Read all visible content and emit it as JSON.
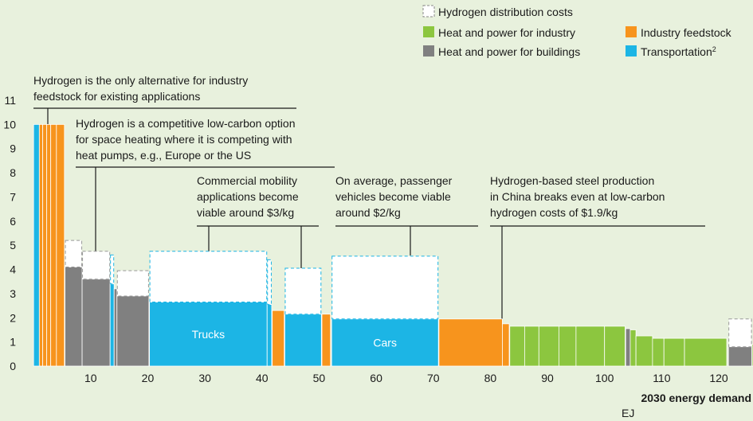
{
  "chart_data": {
    "type": "cost_curve",
    "xlim": [
      -1,
      126
    ],
    "ylim": [
      0,
      11
    ],
    "xticks": [
      10,
      20,
      30,
      40,
      50,
      60,
      70,
      80,
      90,
      100,
      110,
      120
    ],
    "yticks": [
      0,
      1,
      2,
      3,
      4,
      5,
      6,
      7,
      8,
      9,
      10,
      11
    ],
    "x_label": [
      "2030 energy demand",
      "EJ"
    ],
    "distribution_label": "Hydrogen distribution costs",
    "series": [
      {
        "name": "Heat and power for industry",
        "color": "#8cc63f"
      },
      {
        "name": "Industry feedstock",
        "color": "#f7941d"
      },
      {
        "name": "Heat and power for buildings",
        "color": "#808080"
      },
      {
        "name": "Transportation",
        "sup": "2",
        "color": "#1cb5e5"
      }
    ],
    "bars": [
      {
        "series": 3,
        "x": [
          0,
          1
        ],
        "value": 10
      },
      {
        "series": 1,
        "x": [
          1,
          1.6
        ],
        "value": 10
      },
      {
        "series": 1,
        "x": [
          1.6,
          2.3
        ],
        "value": 10
      },
      {
        "series": 1,
        "x": [
          2.3,
          3
        ],
        "value": 10
      },
      {
        "series": 1,
        "x": [
          3,
          4
        ],
        "value": 10
      },
      {
        "series": 1,
        "x": [
          4,
          5.4
        ],
        "value": 10
      },
      {
        "series": 2,
        "x": [
          5.5,
          8.5
        ],
        "value": 4.1,
        "dist": 1.1
      },
      {
        "series": 2,
        "x": [
          8.5,
          13.4
        ],
        "value": 3.6,
        "dist": 1.15
      },
      {
        "series": 3,
        "x": [
          13.4,
          14.1
        ],
        "value": 3.4,
        "dist": 1.2
      },
      {
        "series": 2,
        "x": [
          14.1,
          14.6
        ],
        "value": 3.2
      },
      {
        "series": 2,
        "x": [
          14.6,
          20.2
        ],
        "value": 2.9,
        "dist": 1.05
      },
      {
        "series": 3,
        "x": [
          20.3,
          40.9
        ],
        "value": 2.65,
        "dist": 2.1,
        "label": "Trucks"
      },
      {
        "series": 3,
        "x": [
          40.9,
          41.7
        ],
        "value": 2.55,
        "dist": 1.85
      },
      {
        "series": 1,
        "x": [
          41.8,
          43.9
        ],
        "value": 2.3
      },
      {
        "series": 3,
        "x": [
          44,
          50.4
        ],
        "value": 2.15,
        "dist": 1.9
      },
      {
        "series": 1,
        "x": [
          50.5,
          52
        ],
        "value": 2.15
      },
      {
        "series": 3,
        "x": [
          52.2,
          70.9
        ],
        "value": 1.95,
        "dist": 2.6,
        "label": "Cars"
      },
      {
        "series": 1,
        "x": [
          71,
          82.1
        ],
        "value": 1.95
      },
      {
        "series": 1,
        "x": [
          82.1,
          83.3
        ],
        "value": 1.75
      },
      {
        "series": 0,
        "x": [
          83.4,
          86
        ],
        "value": 1.65
      },
      {
        "series": 0,
        "x": [
          86,
          88.5
        ],
        "value": 1.65
      },
      {
        "series": 0,
        "x": [
          88.5,
          92
        ],
        "value": 1.65
      },
      {
        "series": 0,
        "x": [
          92,
          95
        ],
        "value": 1.65
      },
      {
        "series": 0,
        "x": [
          95,
          100
        ],
        "value": 1.65
      },
      {
        "series": 0,
        "x": [
          100,
          103.6
        ],
        "value": 1.65
      },
      {
        "series": 2,
        "x": [
          103.7,
          104.5
        ],
        "value": 1.55
      },
      {
        "series": 0,
        "x": [
          104.5,
          105.5
        ],
        "value": 1.5
      },
      {
        "series": 0,
        "x": [
          105.5,
          108.4
        ],
        "value": 1.25
      },
      {
        "series": 0,
        "x": [
          108.4,
          110.4
        ],
        "value": 1.15
      },
      {
        "series": 0,
        "x": [
          110.4,
          114
        ],
        "value": 1.15
      },
      {
        "series": 0,
        "x": [
          114,
          121.4
        ],
        "value": 1.15
      },
      {
        "series": 2,
        "x": [
          121.7,
          125.8
        ],
        "value": 0.8,
        "dist": 1.15
      },
      {
        "series": 0,
        "x": [
          125.8,
          126
        ],
        "value": 0.9
      }
    ],
    "annotations": [
      {
        "lines": [
          "Hydrogen is the only alternative for industry",
          "feedstock for existing applications"
        ]
      },
      {
        "lines": [
          "Hydrogen is a competitive low-carbon option",
          "for space heating where it is competing with",
          "heat pumps, e.g., Europe or the US"
        ]
      },
      {
        "lines": [
          "Commercial mobility",
          "applications become",
          "viable around $3/kg"
        ]
      },
      {
        "lines": [
          "On average, passenger",
          "vehicles become viable",
          "around $2/kg"
        ]
      },
      {
        "lines": [
          "Hydrogen-based steel production",
          "in China breaks even at low-carbon",
          "hydrogen costs of $1.9/kg"
        ]
      }
    ]
  }
}
